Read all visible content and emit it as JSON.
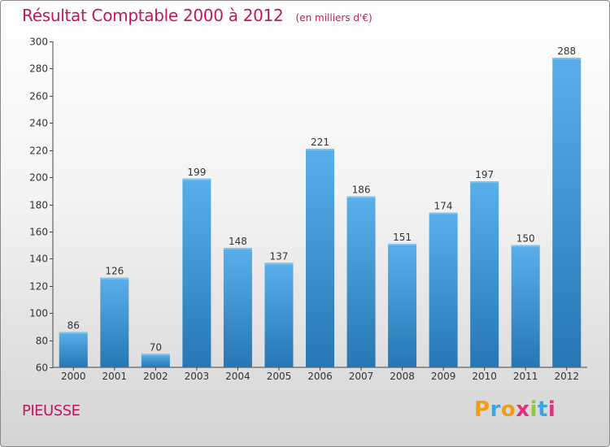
{
  "title": "Résultat Comptable 2000 à 2012",
  "unit": "(en milliers d'€)",
  "commune": "PIEUSSE",
  "brand": {
    "letters": [
      "P",
      "r",
      "o",
      "x",
      "i",
      "t",
      "i"
    ],
    "colors": [
      "#f39c12",
      "#3aa7e0",
      "#f39c12",
      "#e2317a",
      "#8dc63f",
      "#3aa7e0",
      "#e2317a"
    ]
  },
  "colors": {
    "title": "#c0185a",
    "bar_light": "#5aafea",
    "bar_dark": "#2677b3"
  },
  "chart_data": {
    "type": "bar",
    "title": "Résultat Comptable 2000 à 2012",
    "subtitle": "(en milliers d'€)",
    "xlabel": "",
    "ylabel": "",
    "categories": [
      "2000",
      "2001",
      "2002",
      "2003",
      "2004",
      "2005",
      "2006",
      "2007",
      "2008",
      "2009",
      "2010",
      "2011",
      "2012"
    ],
    "values": [
      86,
      126,
      70,
      199,
      148,
      137,
      221,
      186,
      151,
      174,
      197,
      150,
      288
    ],
    "ylim": [
      60,
      300
    ],
    "yticks": [
      60,
      80,
      100,
      120,
      140,
      160,
      180,
      200,
      220,
      240,
      260,
      280,
      300
    ],
    "grid": false,
    "data_labels": true
  }
}
